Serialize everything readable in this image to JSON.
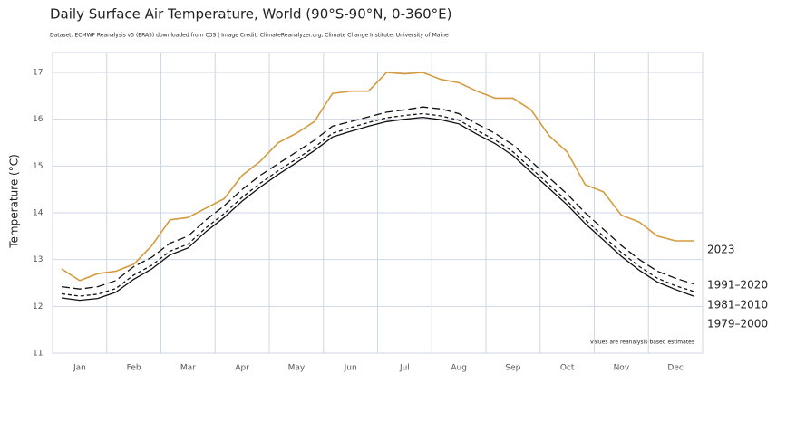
{
  "chart_data": {
    "type": "line",
    "title": "Daily Surface Air Temperature, World (90°S-90°N, 0-360°E)",
    "subtitle": "Dataset: ECMWF Reanalysis v5 (ERA5) downloaded from C3S | Image Credit: ClimateReanalyzer.org, Climate Change Institute, University of Maine",
    "ylabel": "Temperature (°C)",
    "note": "Values are reanalysis-based estimates",
    "categories": [
      null,
      "Jan",
      null,
      null,
      "Feb",
      null,
      null,
      "Mar",
      null,
      null,
      "Apr",
      null,
      null,
      "May",
      null,
      null,
      "Jun",
      null,
      null,
      "Jul",
      null,
      null,
      "Aug",
      null,
      null,
      "Sep",
      null,
      null,
      "Oct",
      null,
      null,
      "Nov",
      null,
      null,
      "Dec",
      null
    ],
    "ylim": [
      11,
      17
    ],
    "yticks": [
      11,
      12,
      13,
      14,
      15,
      16,
      17
    ],
    "grid": true,
    "series": [
      {
        "name": "2023",
        "color": "#d39b3e",
        "dash": "none",
        "values": [
          12.8,
          12.55,
          12.7,
          12.75,
          12.9,
          13.3,
          13.85,
          13.9,
          14.1,
          14.3,
          14.8,
          15.1,
          15.5,
          15.7,
          15.95,
          16.55,
          16.6,
          16.6,
          17.0,
          16.97,
          17.0,
          16.85,
          16.78,
          16.6,
          16.45,
          16.45,
          16.2,
          15.65,
          15.3,
          14.6,
          14.45,
          13.95,
          13.8,
          13.5,
          13.4,
          13.4
        ]
      },
      {
        "name": "1991–2020",
        "color": "#111111",
        "dash": "9 4",
        "values": [
          12.42,
          12.37,
          12.42,
          12.55,
          12.85,
          13.05,
          13.35,
          13.5,
          13.85,
          14.15,
          14.5,
          14.8,
          15.05,
          15.3,
          15.55,
          15.85,
          15.95,
          16.05,
          16.15,
          16.2,
          16.26,
          16.22,
          16.12,
          15.9,
          15.7,
          15.45,
          15.1,
          14.75,
          14.4,
          14.0,
          13.65,
          13.3,
          13.0,
          12.75,
          12.6,
          12.48
        ]
      },
      {
        "name": "1981–2010",
        "color": "#111111",
        "dash": "4 3",
        "values": [
          12.27,
          12.22,
          12.26,
          12.38,
          12.67,
          12.88,
          13.18,
          13.33,
          13.68,
          13.98,
          14.33,
          14.63,
          14.9,
          15.15,
          15.4,
          15.7,
          15.82,
          15.93,
          16.03,
          16.08,
          16.12,
          16.07,
          15.98,
          15.76,
          15.56,
          15.3,
          14.95,
          14.6,
          14.25,
          13.85,
          13.5,
          13.15,
          12.85,
          12.6,
          12.44,
          12.32
        ]
      },
      {
        "name": "1979–2000",
        "color": "#111111",
        "dash": "none",
        "values": [
          12.18,
          12.13,
          12.17,
          12.3,
          12.58,
          12.8,
          13.1,
          13.25,
          13.6,
          13.9,
          14.25,
          14.55,
          14.82,
          15.07,
          15.33,
          15.62,
          15.74,
          15.85,
          15.95,
          16.0,
          16.04,
          15.99,
          15.9,
          15.68,
          15.48,
          15.22,
          14.87,
          14.52,
          14.17,
          13.77,
          13.42,
          13.07,
          12.77,
          12.52,
          12.36,
          12.22
        ]
      }
    ]
  }
}
